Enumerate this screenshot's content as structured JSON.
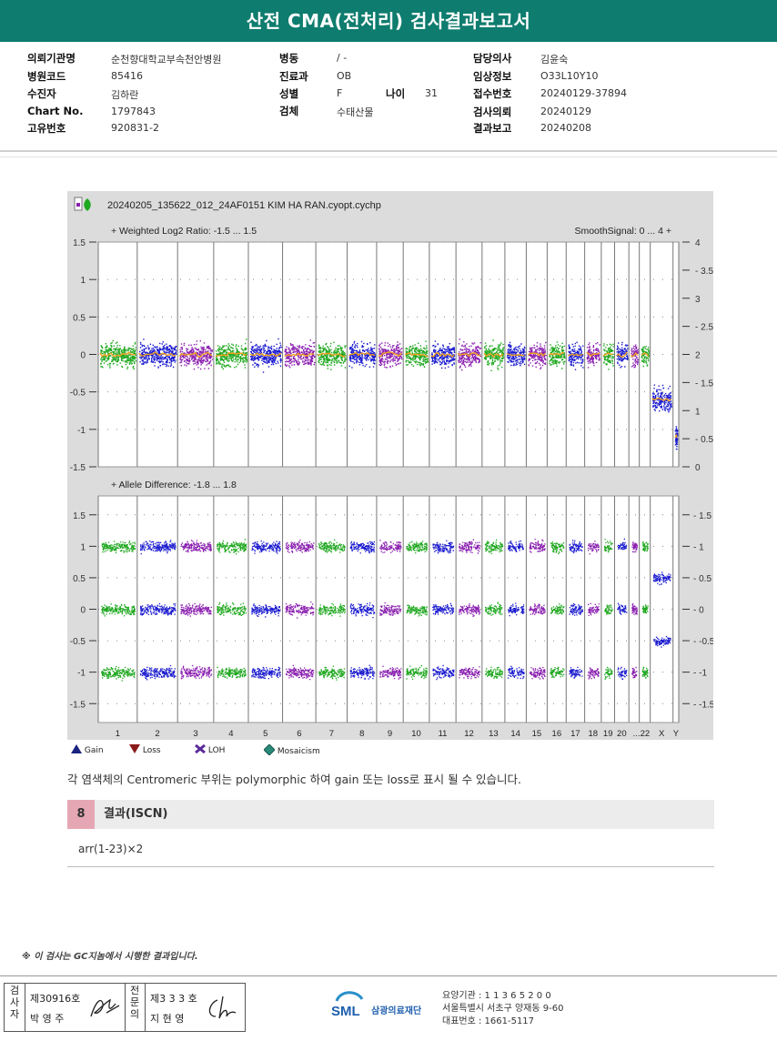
{
  "report": {
    "title": "산전 CMA(전처리) 검사결과보고서"
  },
  "patient_info": {
    "col1": [
      {
        "label": "의뢰기관명",
        "value": "순천향대학교부속천안병원"
      },
      {
        "label": "병원코드",
        "value": "85416"
      },
      {
        "label": "수진자",
        "value": "김하란"
      },
      {
        "label": "Chart No.",
        "value": "1797843"
      },
      {
        "label": "고유번호",
        "value": "920831-2"
      }
    ],
    "col2": [
      {
        "label": "병동",
        "value": "/ -"
      },
      {
        "label": "진료과",
        "value": "OB"
      },
      {
        "label": "성별",
        "value": "F"
      },
      {
        "label": "검체",
        "value": "수태산물"
      }
    ],
    "age": {
      "label": "나이",
      "value": "31"
    },
    "col3": [
      {
        "label": "담당의사",
        "value": "김윤숙"
      },
      {
        "label": "임상정보",
        "value": "O33L10Y10"
      },
      {
        "label": "접수번호",
        "value": "20240129-37894"
      },
      {
        "label": "검사의뢰",
        "value": "20240129"
      },
      {
        "label": "결과보고",
        "value": "20240208"
      }
    ]
  },
  "chart_data": [
    {
      "type": "scatter",
      "title": "20240205_135622_012_24AF0151 KIM HA RAN.cyopt.cychp",
      "subtitle": "Weighted Log2 Ratio: -1.5 ... 1.5",
      "right_label": "SmoothSignal: 0 ... 4",
      "ylim": [
        -1.5,
        1.5
      ],
      "y2lim": [
        0,
        4
      ],
      "yticks": [
        "1.5",
        "1",
        "0.5",
        "0",
        "-0.5",
        "-1",
        "-1.5"
      ],
      "y2ticks": [
        "4",
        "3.5",
        "3",
        "2.5",
        "2",
        "1.5",
        "1",
        "0.5",
        "0"
      ],
      "categories": [
        "1",
        "2",
        "3",
        "4",
        "5",
        "6",
        "7",
        "8",
        "9",
        "10",
        "11",
        "12",
        "13",
        "14",
        "15",
        "16",
        "17",
        "18",
        "19",
        "20",
        "21",
        "22",
        "X",
        "Y"
      ],
      "colors": {
        "green": "#1fa81f",
        "blue": "#1b1bd0",
        "purple": "#8a1fb0",
        "smooth": "#f0a020"
      },
      "series": [
        {
          "values": [
            0,
            0,
            0,
            0,
            0,
            0,
            0,
            0,
            0,
            0,
            0,
            0,
            0,
            0,
            0,
            0,
            0,
            0,
            0,
            0,
            0,
            0,
            -0.6,
            -1.1
          ]
        }
      ]
    },
    {
      "type": "scatter",
      "subtitle": "Allele Difference: -1.8 ... 1.8",
      "ylim": [
        -1.8,
        1.8
      ],
      "yticks": [
        "1.5",
        "1",
        "0.5",
        "0",
        "-0.5",
        "-1",
        "-1.5"
      ],
      "y2ticks": [
        "1.5",
        "1",
        "0.5",
        "0",
        "-0.5",
        "-1",
        "-1.5"
      ],
      "bands": [
        1,
        0,
        -1
      ],
      "x_band": [
        0.5,
        -0.5
      ]
    }
  ],
  "legend": [
    {
      "label": "Gain",
      "icon": "triangle-up-icon",
      "color": "#1a237e"
    },
    {
      "label": "Loss",
      "icon": "triangle-down-icon",
      "color": "#8b1a1a"
    },
    {
      "label": "LOH",
      "icon": "x-icon",
      "color": "#5b2c9c"
    },
    {
      "label": "Mosaicism",
      "icon": "diamond-icon",
      "color": "#2a8a7a"
    }
  ],
  "note": "각 염색체의 Centromeric 부위는 polymorphic 하여 gain 또는 loss로 표시 될 수 있습니다.",
  "section": {
    "number": "8",
    "title": "결과(ISCN)"
  },
  "result": "arr(1-23)×2",
  "gc_note": "※ 이 검사는 GC지놈에서 시행한 결과입니다.",
  "signatures": {
    "v1": "검사자",
    "no1": "제30916호",
    "name1": "박 영 주",
    "v2": "전문의",
    "no2": "제3 3 3 호",
    "name2": "지 현 영"
  },
  "footer": {
    "brand": "삼광의료재단",
    "sml": "SML",
    "line1": "요양기관 : 1 1 3 6 5 2 0 0",
    "line2": "서울특별시 서초구 양재동 9-60",
    "line3": "대표번호 : 1661-5117"
  }
}
